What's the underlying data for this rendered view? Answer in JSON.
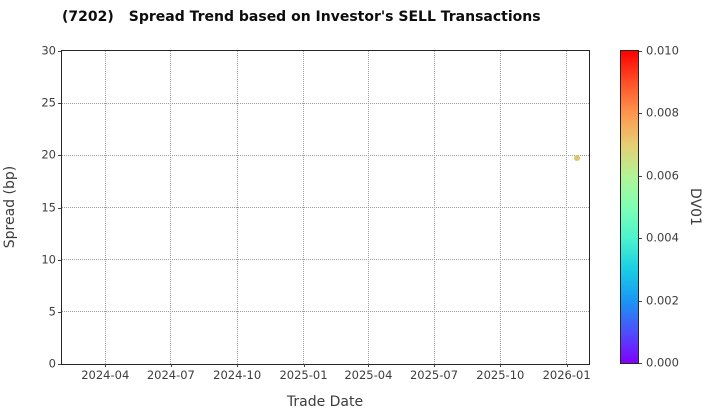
{
  "chart_data": {
    "type": "scatter",
    "title": "(7202)   Spread Trend based on Investor's SELL Transactions",
    "title_parts": {
      "code": "(7202)",
      "text": "Spread Trend based on Investor's SELL Transactions"
    },
    "xlabel": "Trade Date",
    "ylabel": "Spread (bp)",
    "xlim": [
      "2024-02-01",
      "2026-02-01"
    ],
    "ylim": [
      0,
      30
    ],
    "yticks": [
      0,
      5,
      10,
      15,
      20,
      25,
      30
    ],
    "xticks": [
      "2024-04",
      "2024-07",
      "2024-10",
      "2025-01",
      "2025-04",
      "2025-07",
      "2025-10",
      "2026-01"
    ],
    "grid": true,
    "grid_style": "dotted",
    "legend": "none",
    "points": [
      {
        "trade_date": "2026-01-15",
        "spread_bp": 19.7,
        "dv01": 0.007,
        "color": "#e0c56a"
      }
    ],
    "colorbar": {
      "label": "DV01",
      "min": 0.0,
      "max": 0.01,
      "ticks": [
        "0.000",
        "0.002",
        "0.004",
        "0.006",
        "0.008",
        "0.010"
      ],
      "colormap": "rainbow",
      "stops": [
        {
          "pos": 0.0,
          "color": "#8000ff"
        },
        {
          "pos": 0.1,
          "color": "#4d4ffc"
        },
        {
          "pos": 0.2,
          "color": "#1a96f3"
        },
        {
          "pos": 0.3,
          "color": "#1acee3"
        },
        {
          "pos": 0.4,
          "color": "#4df3ce"
        },
        {
          "pos": 0.5,
          "color": "#80ffb4"
        },
        {
          "pos": 0.6,
          "color": "#b3f396"
        },
        {
          "pos": 0.7,
          "color": "#e6ce74"
        },
        {
          "pos": 0.8,
          "color": "#ff964f"
        },
        {
          "pos": 0.9,
          "color": "#ff4f28"
        },
        {
          "pos": 1.0,
          "color": "#ff0000"
        }
      ]
    },
    "colors": {
      "spine": "#262626",
      "grid": "#9c9c9c",
      "tick_text": "#3d3d3d",
      "title_text": "#0d0d0d",
      "background": "#ffffff"
    }
  }
}
